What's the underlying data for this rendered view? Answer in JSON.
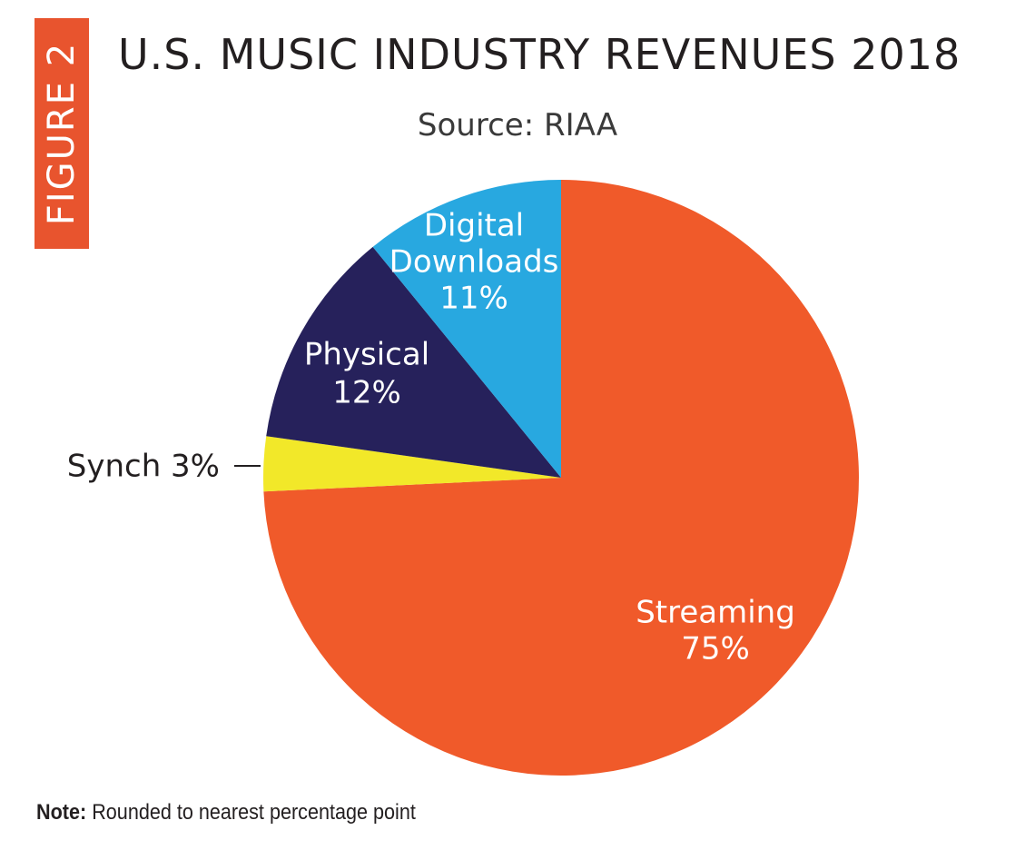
{
  "figure_label": "FIGURE 2",
  "note": {
    "label": "Note:",
    "text": "Rounded to nearest percentage point"
  },
  "colors": {
    "figure_tab": "#e8542e",
    "streaming": "#f05a2a",
    "synch": "#f2e829",
    "physical": "#26215b",
    "digital_downloads": "#28a8e0"
  },
  "chart_data": {
    "type": "pie",
    "title": "U.S. MUSIC INDUSTRY REVENUES 2018",
    "subtitle": "Source: RIAA",
    "unit": "%",
    "slices": [
      {
        "name": "Streaming",
        "value": 75,
        "label_lines": [
          "Streaming",
          "75%"
        ],
        "color": "#f05a2a"
      },
      {
        "name": "Synch",
        "value": 3,
        "label_lines": [
          "Synch 3%"
        ],
        "color": "#f2e829"
      },
      {
        "name": "Physical",
        "value": 12,
        "label_lines": [
          "Physical",
          "12%"
        ],
        "color": "#26215b"
      },
      {
        "name": "Digital Downloads",
        "value": 11,
        "label_lines": [
          "Digital",
          "Downloads",
          "11%"
        ],
        "color": "#28a8e0"
      }
    ]
  }
}
